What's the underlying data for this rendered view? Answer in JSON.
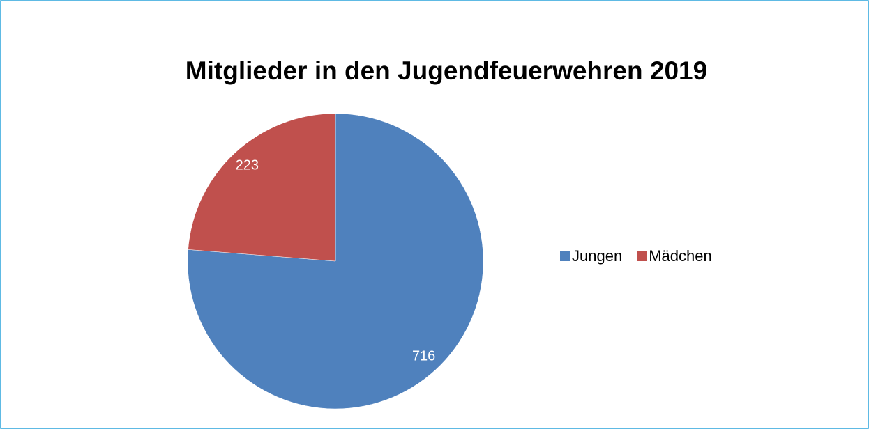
{
  "chart_data": {
    "type": "pie",
    "title": "Mitglieder in den Jugendfeuerwehren 2019",
    "categories": [
      "Jungen",
      "Mädchen"
    ],
    "values": [
      716,
      223
    ],
    "colors": [
      "#4f81bd",
      "#c0504d"
    ],
    "legend": "right"
  }
}
